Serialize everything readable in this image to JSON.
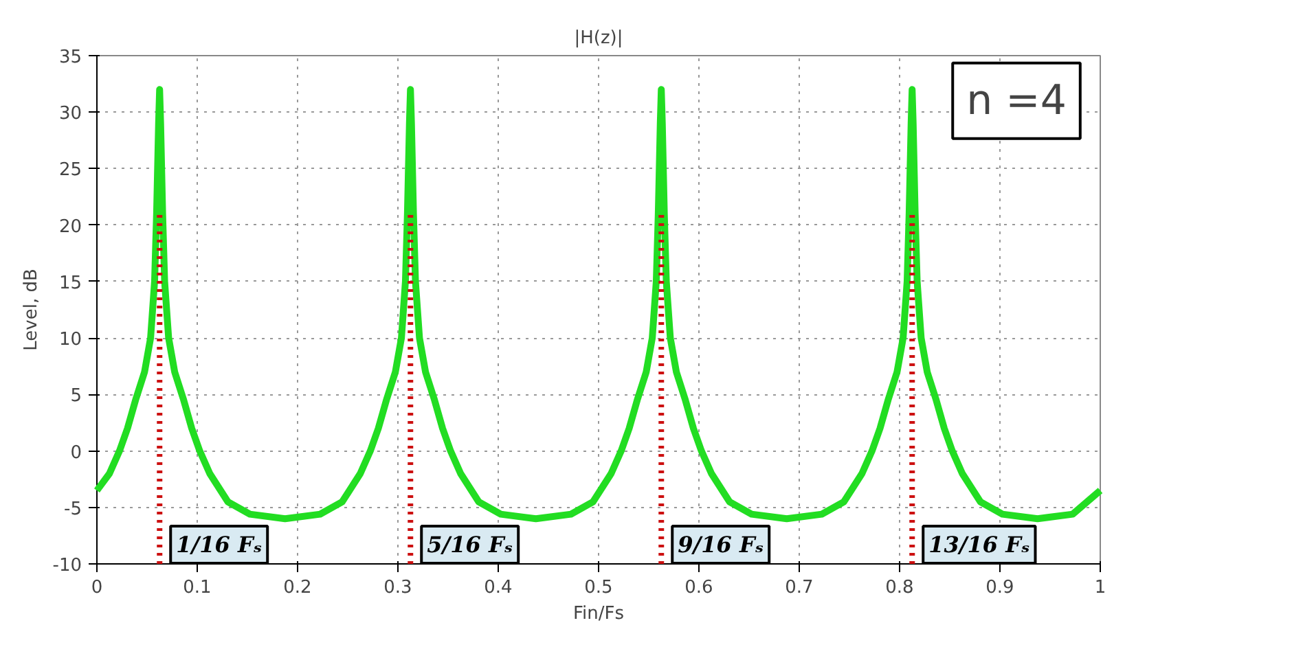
{
  "chart_data": {
    "type": "line",
    "title": "|H(z)|",
    "xlabel": "Fin/Fs",
    "ylabel": "Level, dB",
    "xlim": [
      0,
      1
    ],
    "ylim": [
      -10,
      35
    ],
    "xticks": [
      0,
      0.1,
      0.2,
      0.3,
      0.4,
      0.5,
      0.6,
      0.7,
      0.8,
      0.9,
      1
    ],
    "yticks": [
      -10,
      -5,
      0,
      5,
      10,
      15,
      20,
      25,
      30,
      35
    ],
    "grid": true,
    "marker": "none",
    "series": [
      {
        "color": "#22dd22",
        "line_style": "solid",
        "x": [
          0,
          0.0125,
          0.0225,
          0.0305,
          0.0385,
          0.0475,
          0.0535,
          0.0575,
          0.0595,
          0.0615,
          0.0625,
          0.0635,
          0.0655,
          0.0675,
          0.0715,
          0.0775,
          0.0865,
          0.0945,
          0.1025,
          0.1125,
          0.1305,
          0.1525,
          0.1875,
          0.2225,
          0.2445,
          0.2625,
          0.2725,
          0.2805,
          0.2885,
          0.2975,
          0.3035,
          0.3075,
          0.3095,
          0.3115,
          0.3125,
          0.3135,
          0.3155,
          0.3175,
          0.3215,
          0.3275,
          0.3365,
          0.3445,
          0.3525,
          0.3625,
          0.3805,
          0.4025,
          0.4375,
          0.4725,
          0.4945,
          0.5125,
          0.5225,
          0.5305,
          0.5385,
          0.5475,
          0.5535,
          0.5575,
          0.5595,
          0.5615,
          0.5625,
          0.5635,
          0.5655,
          0.5675,
          0.5715,
          0.5775,
          0.5865,
          0.5945,
          0.6025,
          0.6125,
          0.6305,
          0.6525,
          0.6875,
          0.7225,
          0.7445,
          0.7625,
          0.7725,
          0.7805,
          0.7885,
          0.7975,
          0.8035,
          0.8075,
          0.8095,
          0.8115,
          0.8125,
          0.8135,
          0.8155,
          0.8175,
          0.8215,
          0.8275,
          0.8365,
          0.8445,
          0.8525,
          0.8625,
          0.8805,
          0.9025,
          0.9375,
          0.9725,
          1
        ],
        "values": [
          -3.5,
          -2,
          0,
          2,
          4.5,
          7,
          10,
          15,
          21,
          29,
          32,
          29,
          21,
          15,
          10,
          7,
          4.5,
          2,
          0,
          -2,
          -4.5,
          -5.6,
          -6,
          -5.6,
          -4.5,
          -2,
          0,
          2,
          4.5,
          7,
          10,
          15,
          21,
          29,
          32,
          29,
          21,
          15,
          10,
          7,
          4.5,
          2,
          0,
          -2,
          -4.5,
          -5.6,
          -6,
          -5.6,
          -4.5,
          -2,
          0,
          2,
          4.5,
          7,
          10,
          15,
          21,
          29,
          32,
          29,
          21,
          15,
          10,
          7,
          4.5,
          2,
          0,
          -2,
          -4.5,
          -5.6,
          -6,
          -5.6,
          -4.5,
          -2,
          0,
          2,
          4.5,
          7,
          10,
          15,
          21,
          29,
          32,
          29,
          21,
          15,
          10,
          7,
          4.5,
          2,
          0,
          -2,
          -4.5,
          -5.6,
          -6,
          -5.6,
          -3.5
        ]
      },
      {
        "color": "#cc1111",
        "line_style": "dotted",
        "x": [
          0.0625,
          0.0625
        ],
        "values": [
          -10,
          21
        ]
      },
      {
        "color": "#cc1111",
        "line_style": "dotted",
        "x": [
          0.3125,
          0.3125
        ],
        "values": [
          -10,
          21
        ]
      },
      {
        "color": "#cc1111",
        "line_style": "dotted",
        "x": [
          0.5625,
          0.5625
        ],
        "values": [
          -10,
          21
        ]
      },
      {
        "color": "#cc1111",
        "line_style": "dotted",
        "x": [
          0.8125,
          0.8125
        ],
        "values": [
          -10,
          21
        ]
      }
    ],
    "annotations": [
      "n =4",
      {
        "text": "1/16 Fₛ",
        "x": 0.0625,
        "y": -8.3
      },
      {
        "text": "5/16 Fₛ",
        "x": 0.3125,
        "y": -8.3
      },
      {
        "text": "9/16 Fₛ",
        "x": 0.5625,
        "y": -8.3
      },
      {
        "text": "13/16 Fₛ",
        "x": 0.8125,
        "y": -8.3
      }
    ]
  }
}
